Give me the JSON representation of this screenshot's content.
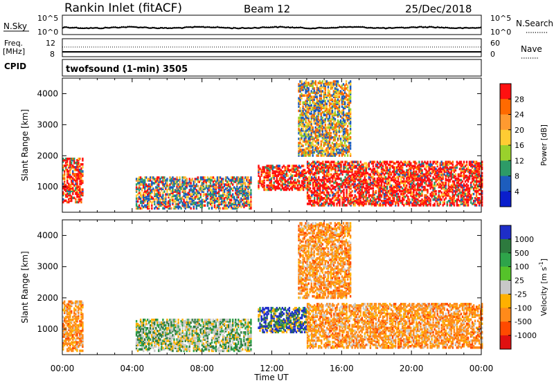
{
  "header": {
    "station": "Rankin Inlet (fitACF)",
    "beam": "Beam 12",
    "date": "25/Dec/2018"
  },
  "noise_panel": {
    "left_label": "N.Sky",
    "right_label": "N.Search",
    "top_tick": "10^5",
    "bottom_tick": "10^0"
  },
  "freq_panel": {
    "left_label_line1": "Freq.",
    "left_label_line2": "[MHz]",
    "left_ticks": [
      "12",
      "8"
    ],
    "right_ticks": [
      "60",
      "0"
    ],
    "right_label": "Nave"
  },
  "cpid": {
    "label": "CPID",
    "value": "twofsound (1-min) 3505"
  },
  "chart_data": [
    {
      "type": "heatmap",
      "title": "",
      "ylabel": "Slant Range [km]",
      "xlabel": "Time UT",
      "y_ticks": [
        "4000",
        "3000",
        "2000",
        "1000"
      ],
      "ylim": [
        180,
        4500
      ],
      "xlim": [
        0,
        24
      ],
      "x_ticks": [
        "00:00",
        "04:00",
        "08:00",
        "12:00",
        "16:00",
        "20:00",
        "00:00"
      ],
      "colorbar": {
        "label": "Power [dB]",
        "ticks": [
          "28",
          "24",
          "20",
          "16",
          "12",
          "8",
          "4"
        ],
        "colors": [
          "#ff1010",
          "#ff6a00",
          "#ff9a30",
          "#ffcc33",
          "#9ad12c",
          "#2d9b67",
          "#1d5dbd",
          "#0a1ecc"
        ]
      },
      "scatter_regions": [
        {
          "t_start": 0.0,
          "t_end": 1.2,
          "range_start": 500,
          "range_end": 1900,
          "level": "high"
        },
        {
          "t_start": 4.2,
          "t_end": 10.8,
          "range_start": 300,
          "range_end": 1300,
          "level": "mixed"
        },
        {
          "t_start": 11.2,
          "t_end": 14.0,
          "range_start": 900,
          "range_end": 1700,
          "level": "high"
        },
        {
          "t_start": 13.5,
          "t_end": 16.5,
          "range_start": 2000,
          "range_end": 4400,
          "level": "medium"
        },
        {
          "t_start": 14.0,
          "t_end": 24.0,
          "range_start": 400,
          "range_end": 1800,
          "level": "high"
        }
      ]
    },
    {
      "type": "heatmap",
      "title": "",
      "ylabel": "Slant Range [km]",
      "xlabel": "Time UT",
      "y_ticks": [
        "4000",
        "3000",
        "2000",
        "1000"
      ],
      "ylim": [
        180,
        4500
      ],
      "xlim": [
        0,
        24
      ],
      "x_ticks": [
        "00:00",
        "04:00",
        "08:00",
        "12:00",
        "16:00",
        "20:00",
        "00:00"
      ],
      "colorbar": {
        "label": "Velocity [m s^-1]",
        "ticks": [
          "1000",
          "500",
          "100",
          "25",
          "-25",
          "-100",
          "-500",
          "-1000"
        ],
        "colors": [
          "#1e2ec8",
          "#2d7a3e",
          "#2ea44a",
          "#55c22a",
          "#c8c8c8",
          "#ffb000",
          "#ff8a1a",
          "#ff4a00",
          "#e01010"
        ]
      },
      "scatter_regions": [
        {
          "t_start": 0.0,
          "t_end": 1.2,
          "range_start": 300,
          "range_end": 1900,
          "level": "negative"
        },
        {
          "t_start": 4.2,
          "t_end": 10.8,
          "range_start": 300,
          "range_end": 1300,
          "level": "mixed"
        },
        {
          "t_start": 11.2,
          "t_end": 14.0,
          "range_start": 900,
          "range_end": 1700,
          "level": "positive"
        },
        {
          "t_start": 13.5,
          "t_end": 16.5,
          "range_start": 2000,
          "range_end": 4400,
          "level": "negative"
        },
        {
          "t_start": 14.0,
          "t_end": 24.0,
          "range_start": 400,
          "range_end": 1800,
          "level": "negative"
        }
      ]
    }
  ]
}
